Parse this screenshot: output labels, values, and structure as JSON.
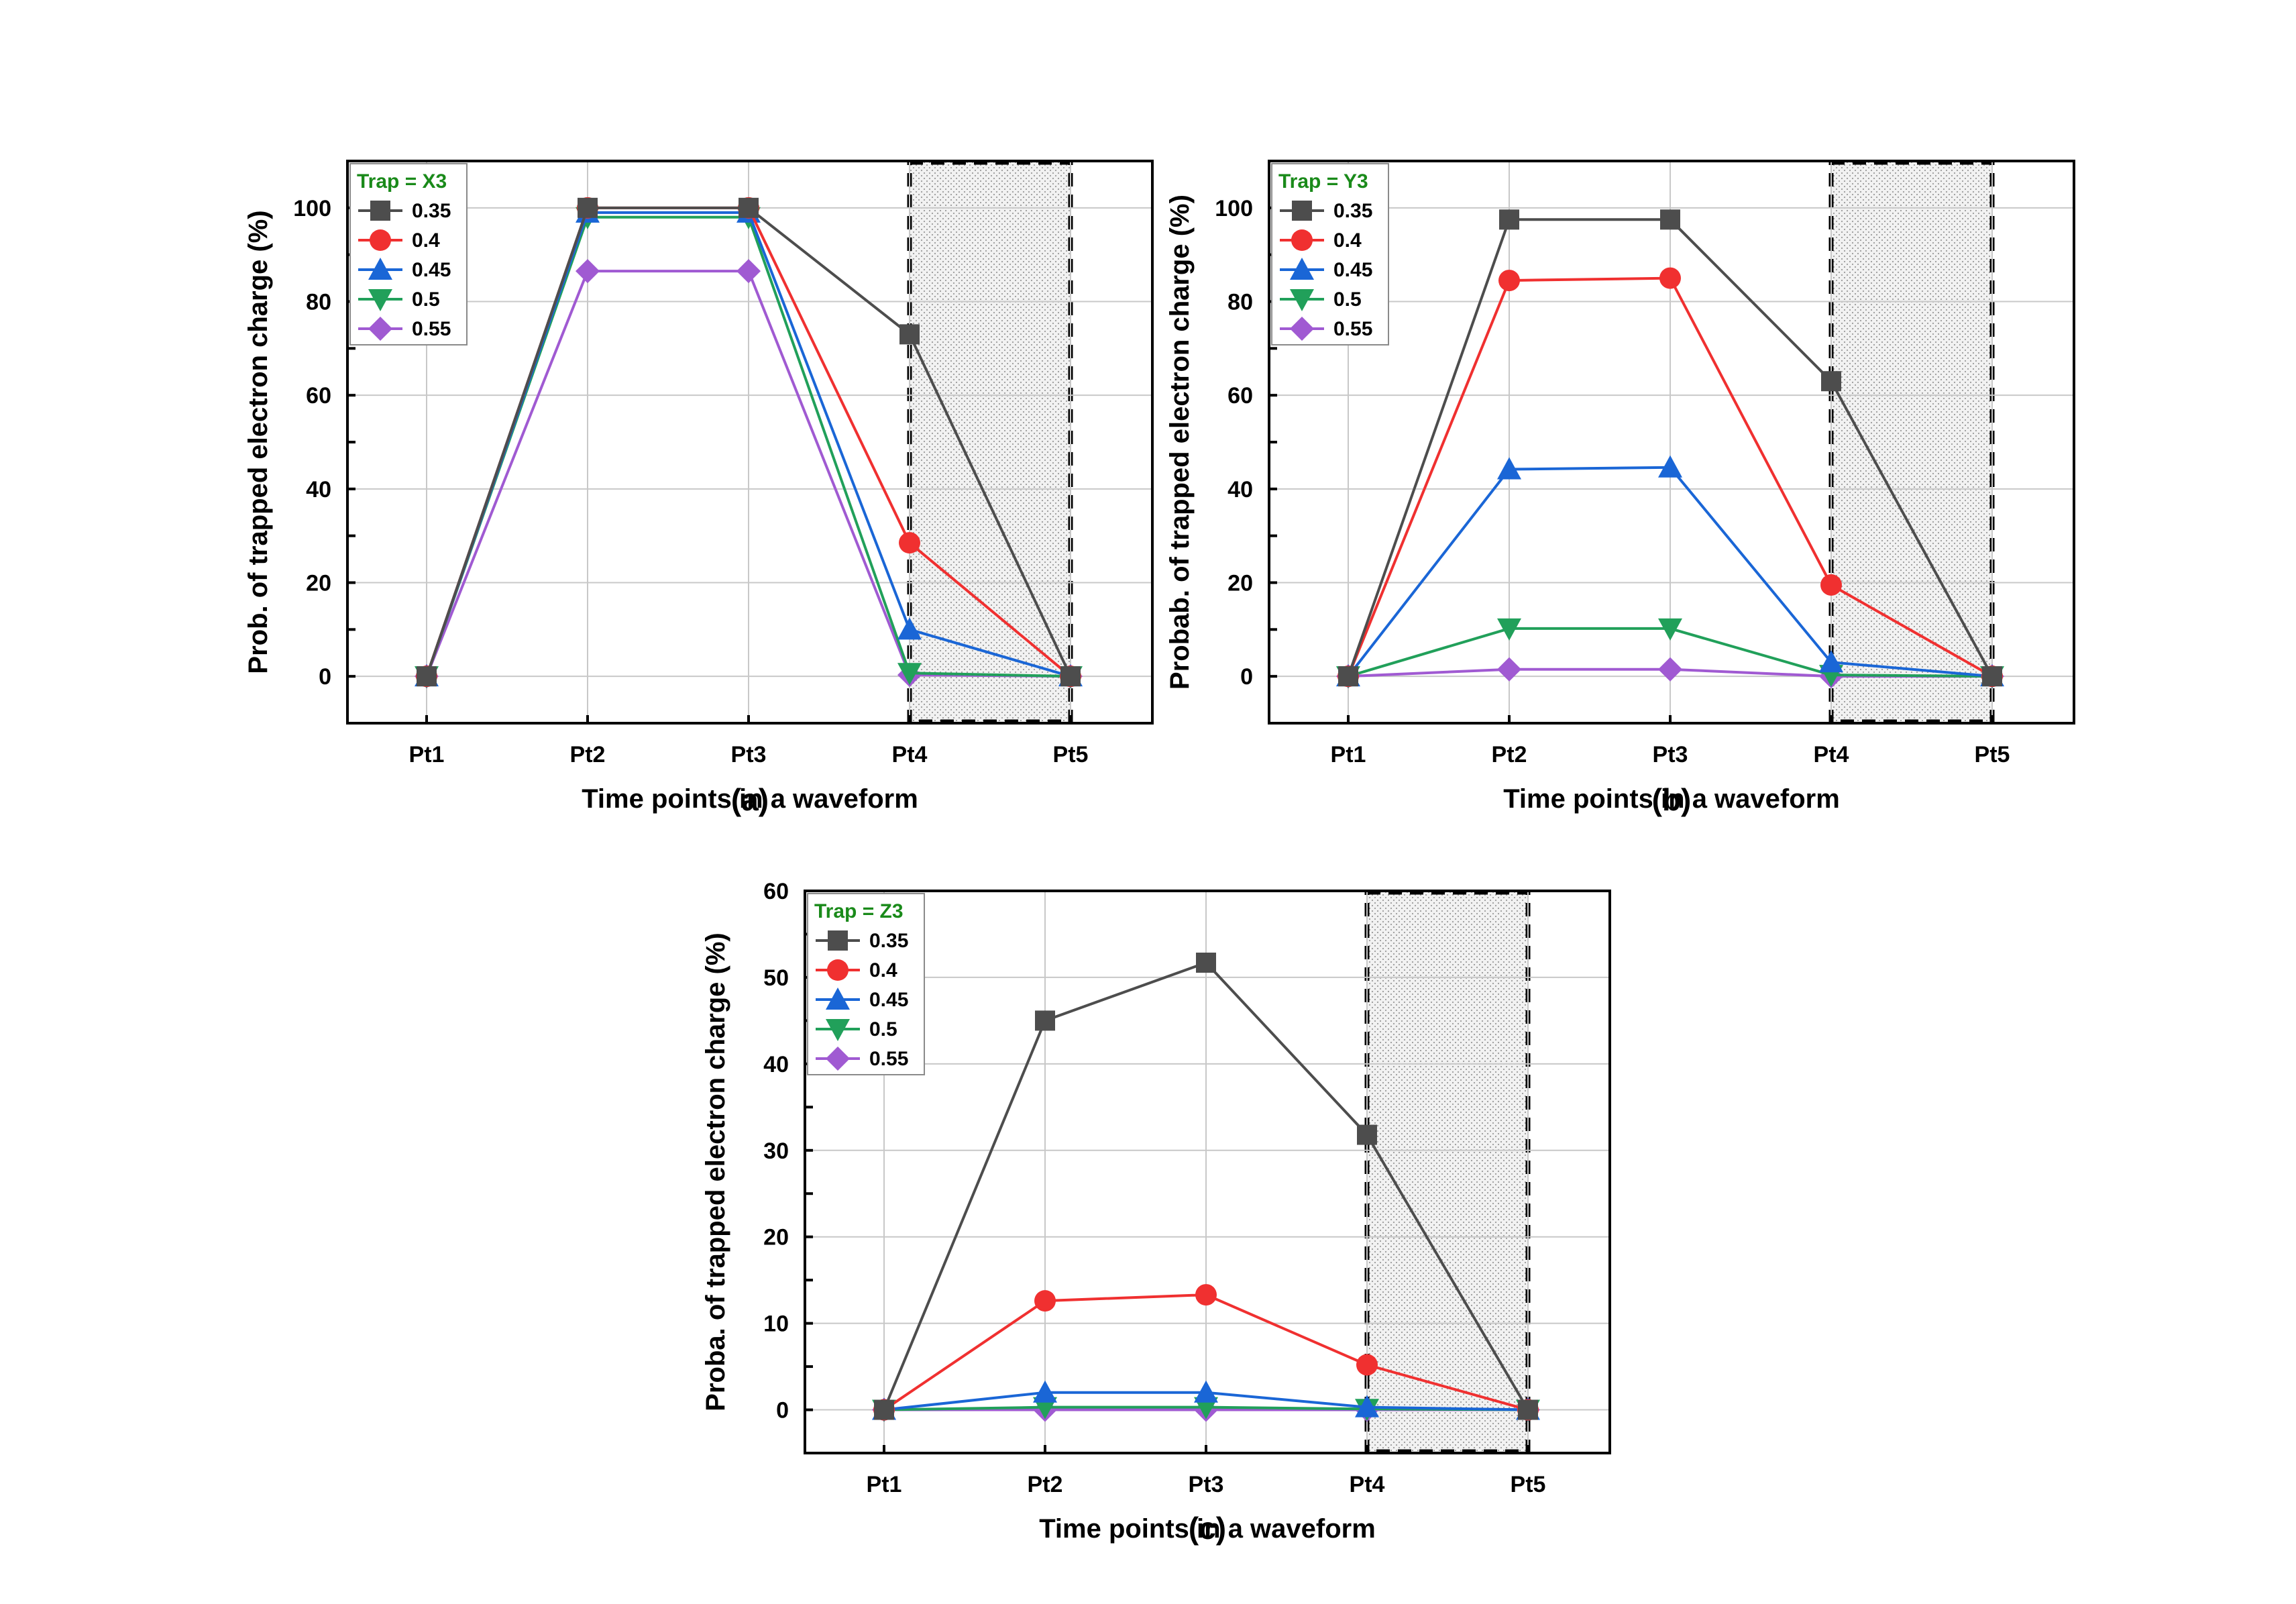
{
  "figure": {
    "colors": {
      "0.35": "#4d4d4d",
      "0.4": "#f03030",
      "0.45": "#1a66d6",
      "0.5": "#21a05a",
      "0.55": "#a05ad2"
    },
    "markers": {
      "0.35": "square",
      "0.4": "circle",
      "0.45": "triangle-up",
      "0.5": "triangle-down",
      "0.55": "diamond"
    },
    "highlight_region": {
      "from": "Pt4",
      "to": "Pt5",
      "style": "dotted shading with dashed border"
    }
  },
  "chart_data": [
    {
      "panel_label": "(a)",
      "type": "line",
      "categories": [
        "Pt1",
        "Pt2",
        "Pt3",
        "Pt4",
        "Pt5"
      ],
      "xlabel": "Time points in a waveform",
      "ylabel": "Prob. of trapped electron charge (%)",
      "ylim": [
        -10,
        110
      ],
      "yticks": [
        0,
        20,
        40,
        60,
        80,
        100
      ],
      "grid": true,
      "legend_title": "Trap = X3",
      "legend_position": "top-left",
      "series": [
        {
          "name": "0.35",
          "values": [
            0,
            100,
            100,
            73,
            0
          ]
        },
        {
          "name": "0.4",
          "values": [
            0,
            100,
            100,
            28.5,
            0
          ]
        },
        {
          "name": "0.45",
          "values": [
            0,
            99,
            99,
            10,
            0
          ]
        },
        {
          "name": "0.5",
          "values": [
            0,
            98,
            98,
            0.7,
            0
          ]
        },
        {
          "name": "0.55",
          "values": [
            0,
            86.5,
            86.5,
            0.3,
            0
          ]
        }
      ]
    },
    {
      "panel_label": "(b)",
      "type": "line",
      "categories": [
        "Pt1",
        "Pt2",
        "Pt3",
        "Pt4",
        "Pt5"
      ],
      "xlabel": "Time points in a waveform",
      "ylabel": "Probab. of trapped electron charge (%)",
      "ylim": [
        -10,
        110
      ],
      "yticks": [
        0,
        20,
        40,
        60,
        80,
        100
      ],
      "grid": true,
      "legend_title": "Trap = Y3",
      "legend_position": "top-left",
      "series": [
        {
          "name": "0.35",
          "values": [
            0,
            97.5,
            97.5,
            63,
            0
          ]
        },
        {
          "name": "0.4",
          "values": [
            0,
            84.5,
            85,
            19.5,
            0
          ]
        },
        {
          "name": "0.45",
          "values": [
            0,
            44.2,
            44.6,
            3,
            0
          ]
        },
        {
          "name": "0.5",
          "values": [
            0,
            10.2,
            10.2,
            0.3,
            0
          ]
        },
        {
          "name": "0.55",
          "values": [
            0,
            1.5,
            1.5,
            0,
            0
          ]
        }
      ]
    },
    {
      "panel_label": "(c)",
      "type": "line",
      "categories": [
        "Pt1",
        "Pt2",
        "Pt3",
        "Pt4",
        "Pt5"
      ],
      "xlabel": "Time points in a waveform",
      "ylabel": "Proba. of trapped electron charge (%)",
      "ylim": [
        -5,
        60
      ],
      "yticks": [
        0,
        10,
        20,
        30,
        40,
        50,
        60
      ],
      "grid": true,
      "legend_title": "Trap = Z3",
      "legend_position": "top-left",
      "series": [
        {
          "name": "0.35",
          "values": [
            0,
            45,
            51.7,
            31.8,
            0
          ]
        },
        {
          "name": "0.4",
          "values": [
            0,
            12.6,
            13.3,
            5.2,
            0
          ]
        },
        {
          "name": "0.45",
          "values": [
            0,
            2,
            2,
            0.3,
            0
          ]
        },
        {
          "name": "0.5",
          "values": [
            0,
            0.3,
            0.3,
            0.1,
            0
          ]
        },
        {
          "name": "0.55",
          "values": [
            0,
            0,
            0,
            0,
            0
          ]
        }
      ]
    }
  ]
}
